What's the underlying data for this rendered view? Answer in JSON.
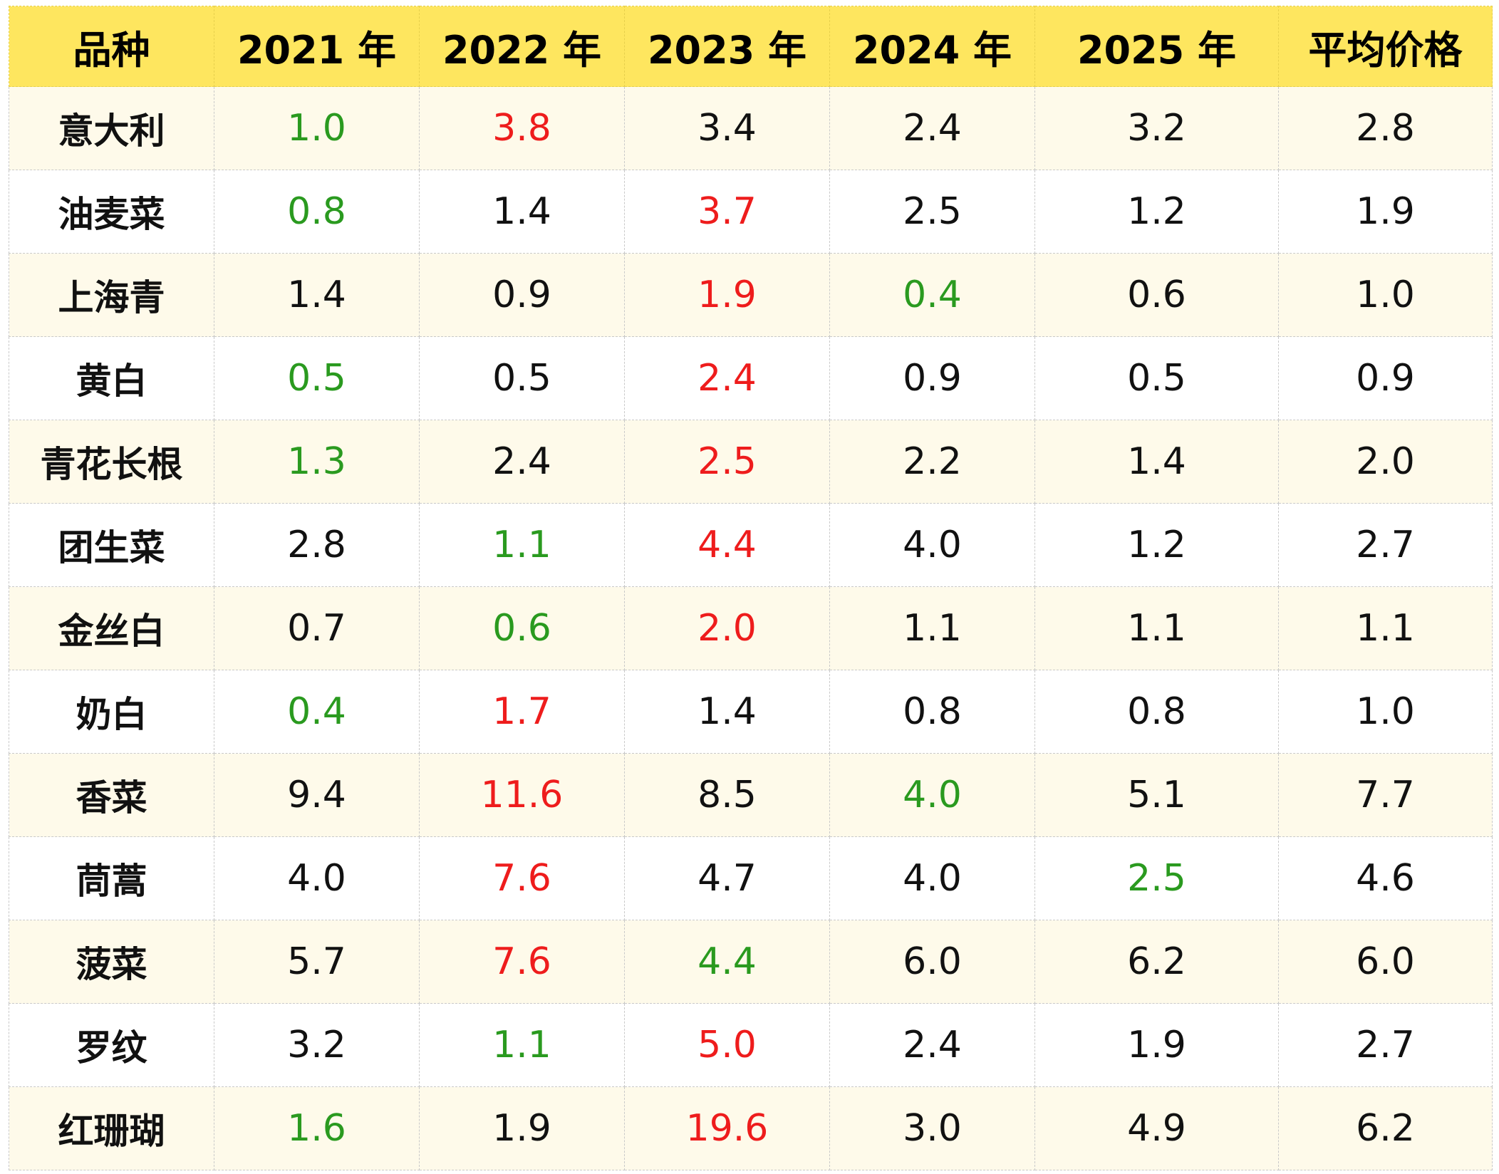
{
  "table": {
    "headers": [
      "品种",
      "2021 年",
      "2022 年",
      "2023 年",
      "2024 年",
      "2025 年",
      "平均价格"
    ],
    "colors": {
      "header_bg": "#fee65f",
      "row_alt_bg": "#fefaea",
      "low": "#2a9a1f",
      "high": "#ee1c1c",
      "normal": "#111111"
    },
    "rows": [
      {
        "name": "意大利",
        "cells": [
          {
            "v": "1.0",
            "c": "green"
          },
          {
            "v": "3.8",
            "c": "red"
          },
          {
            "v": "3.4",
            "c": "plain"
          },
          {
            "v": "2.4",
            "c": "plain"
          },
          {
            "v": "3.2",
            "c": "plain"
          },
          {
            "v": "2.8",
            "c": "plain"
          }
        ]
      },
      {
        "name": "油麦菜",
        "cells": [
          {
            "v": "0.8",
            "c": "green"
          },
          {
            "v": "1.4",
            "c": "plain"
          },
          {
            "v": "3.7",
            "c": "red"
          },
          {
            "v": "2.5",
            "c": "plain"
          },
          {
            "v": "1.2",
            "c": "plain"
          },
          {
            "v": "1.9",
            "c": "plain"
          }
        ]
      },
      {
        "name": "上海青",
        "cells": [
          {
            "v": "1.4",
            "c": "plain"
          },
          {
            "v": "0.9",
            "c": "plain"
          },
          {
            "v": "1.9",
            "c": "red"
          },
          {
            "v": "0.4",
            "c": "green"
          },
          {
            "v": "0.6",
            "c": "plain"
          },
          {
            "v": "1.0",
            "c": "plain"
          }
        ]
      },
      {
        "name": "黄白",
        "cells": [
          {
            "v": "0.5",
            "c": "green"
          },
          {
            "v": "0.5",
            "c": "plain"
          },
          {
            "v": "2.4",
            "c": "red"
          },
          {
            "v": "0.9",
            "c": "plain"
          },
          {
            "v": "0.5",
            "c": "plain"
          },
          {
            "v": "0.9",
            "c": "plain"
          }
        ]
      },
      {
        "name": "青花长根",
        "cells": [
          {
            "v": "1.3",
            "c": "green"
          },
          {
            "v": "2.4",
            "c": "plain"
          },
          {
            "v": "2.5",
            "c": "red"
          },
          {
            "v": "2.2",
            "c": "plain"
          },
          {
            "v": "1.4",
            "c": "plain"
          },
          {
            "v": "2.0",
            "c": "plain"
          }
        ]
      },
      {
        "name": "团生菜",
        "cells": [
          {
            "v": "2.8",
            "c": "plain"
          },
          {
            "v": "1.1",
            "c": "green"
          },
          {
            "v": "4.4",
            "c": "red"
          },
          {
            "v": "4.0",
            "c": "plain"
          },
          {
            "v": "1.2",
            "c": "plain"
          },
          {
            "v": "2.7",
            "c": "plain"
          }
        ]
      },
      {
        "name": "金丝白",
        "cells": [
          {
            "v": "0.7",
            "c": "plain"
          },
          {
            "v": "0.6",
            "c": "green"
          },
          {
            "v": "2.0",
            "c": "red"
          },
          {
            "v": "1.1",
            "c": "plain"
          },
          {
            "v": "1.1",
            "c": "plain"
          },
          {
            "v": "1.1",
            "c": "plain"
          }
        ]
      },
      {
        "name": "奶白",
        "cells": [
          {
            "v": "0.4",
            "c": "green"
          },
          {
            "v": "1.7",
            "c": "red"
          },
          {
            "v": "1.4",
            "c": "plain"
          },
          {
            "v": "0.8",
            "c": "plain"
          },
          {
            "v": "0.8",
            "c": "plain"
          },
          {
            "v": "1.0",
            "c": "plain"
          }
        ]
      },
      {
        "name": "香菜",
        "cells": [
          {
            "v": "9.4",
            "c": "plain"
          },
          {
            "v": "11.6",
            "c": "red"
          },
          {
            "v": "8.5",
            "c": "plain"
          },
          {
            "v": "4.0",
            "c": "green"
          },
          {
            "v": "5.1",
            "c": "plain"
          },
          {
            "v": "7.7",
            "c": "plain"
          }
        ]
      },
      {
        "name": "茼蒿",
        "cells": [
          {
            "v": "4.0",
            "c": "plain"
          },
          {
            "v": "7.6",
            "c": "red"
          },
          {
            "v": "4.7",
            "c": "plain"
          },
          {
            "v": "4.0",
            "c": "plain"
          },
          {
            "v": "2.5",
            "c": "green"
          },
          {
            "v": "4.6",
            "c": "plain"
          }
        ]
      },
      {
        "name": "菠菜",
        "cells": [
          {
            "v": "5.7",
            "c": "plain"
          },
          {
            "v": "7.6",
            "c": "red"
          },
          {
            "v": "4.4",
            "c": "green"
          },
          {
            "v": "6.0",
            "c": "plain"
          },
          {
            "v": "6.2",
            "c": "plain"
          },
          {
            "v": "6.0",
            "c": "plain"
          }
        ]
      },
      {
        "name": "罗纹",
        "cells": [
          {
            "v": "3.2",
            "c": "plain"
          },
          {
            "v": "1.1",
            "c": "green"
          },
          {
            "v": "5.0",
            "c": "red"
          },
          {
            "v": "2.4",
            "c": "plain"
          },
          {
            "v": "1.9",
            "c": "plain"
          },
          {
            "v": "2.7",
            "c": "plain"
          }
        ]
      },
      {
        "name": "红珊瑚",
        "cells": [
          {
            "v": "1.6",
            "c": "green"
          },
          {
            "v": "1.9",
            "c": "plain"
          },
          {
            "v": "19.6",
            "c": "red"
          },
          {
            "v": "3.0",
            "c": "plain"
          },
          {
            "v": "4.9",
            "c": "plain"
          },
          {
            "v": "6.2",
            "c": "plain"
          }
        ]
      }
    ]
  }
}
